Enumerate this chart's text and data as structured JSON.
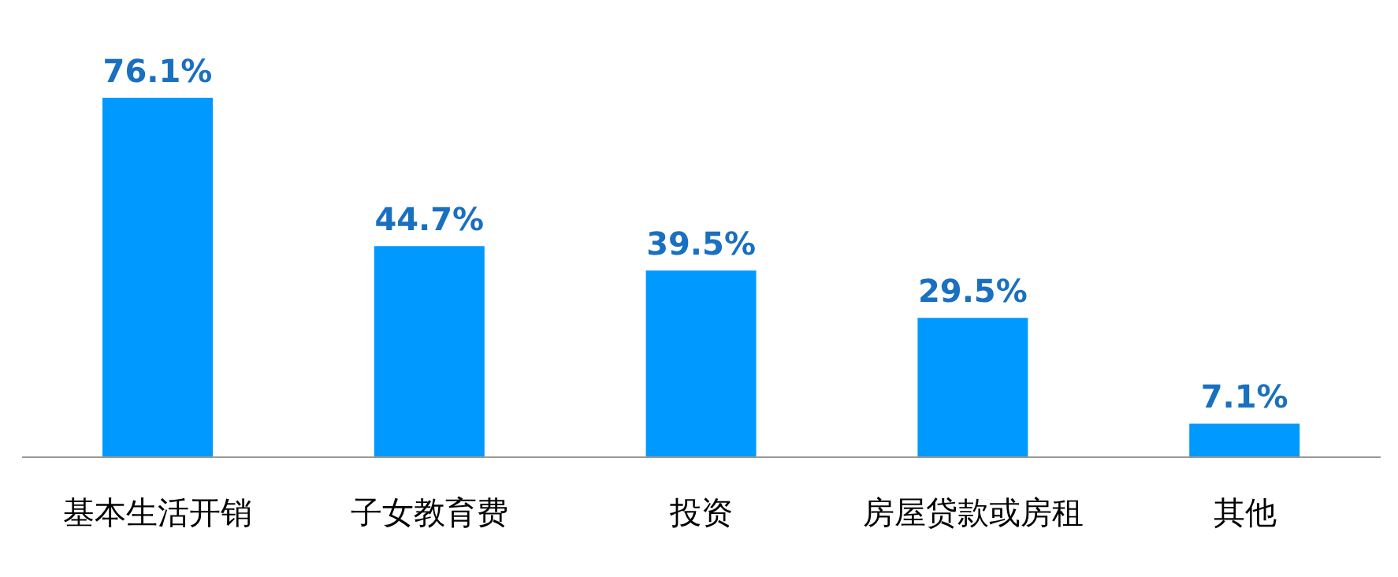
{
  "chart_data": {
    "type": "bar",
    "categories": [
      "基本生活开销",
      "子女教育费",
      "投资",
      "房屋贷款或房租",
      "其他"
    ],
    "values": [
      76.1,
      44.7,
      39.5,
      29.5,
      7.1
    ],
    "value_labels": [
      "76.1%",
      "44.7%",
      "39.5%",
      "29.5%",
      "7.1%"
    ],
    "color": "#0099ff"
  }
}
